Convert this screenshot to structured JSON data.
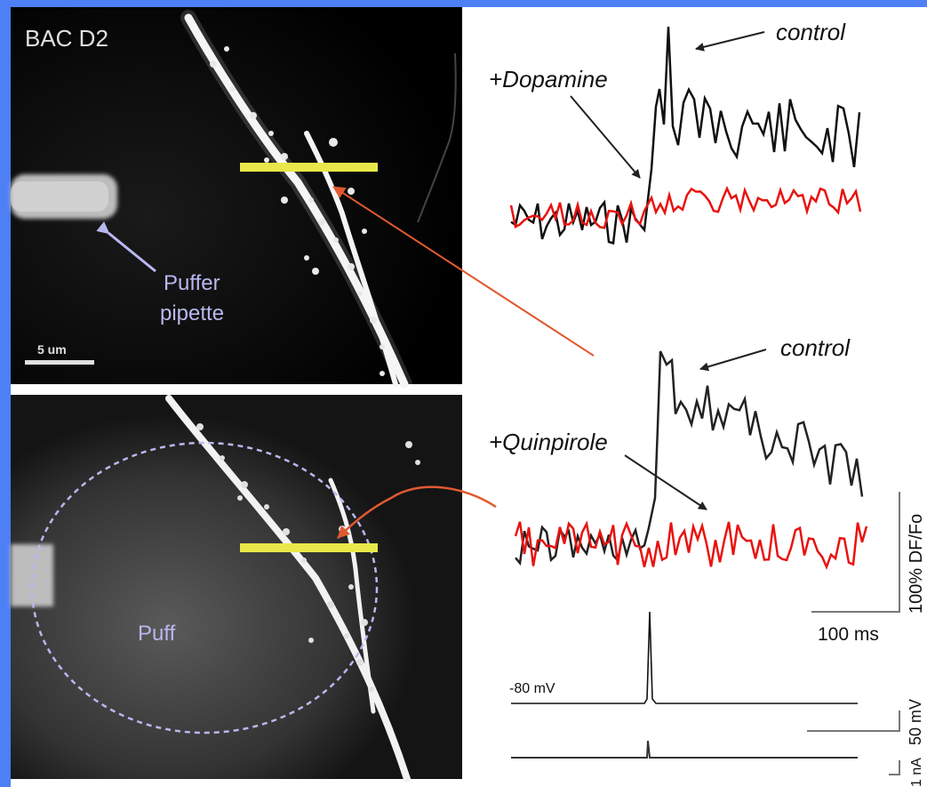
{
  "figure": {
    "top_panel": {
      "label": "BAC D2",
      "pipette_label_line1": "Puffer",
      "pipette_label_line2": "pipette",
      "scale_label": "5 um"
    },
    "bottom_panel": {
      "puff_label": "Puff"
    },
    "traces_top": {
      "control_label": "control",
      "drug_label": "+Dopamine"
    },
    "traces_bottom": {
      "control_label": "control",
      "drug_label": "+Quinpirole"
    },
    "scale_bars": {
      "fluorescence": "100% DF/Fo",
      "time": "100 ms",
      "voltage": "50 mV",
      "current": "1 nA",
      "holding_potential": "-80 mV"
    },
    "colors": {
      "border": "#4d7ff5",
      "control_trace": "#111111",
      "drug_trace": "#e8130f",
      "line_scan": "#e8e84a",
      "annotation": "#b8b8f0",
      "pointer_arrow": "#e05a30"
    }
  }
}
